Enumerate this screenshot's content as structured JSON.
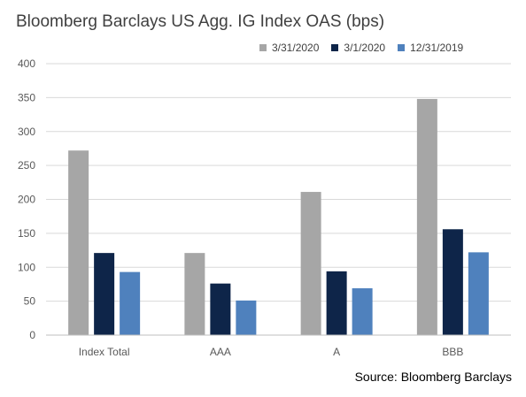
{
  "title": "Bloomberg Barclays US Agg. IG Index OAS (bps)",
  "source": "Source: Bloomberg Barclays",
  "chart_data": {
    "type": "bar",
    "title": "Bloomberg Barclays US Agg. IG Index OAS (bps)",
    "xlabel": "",
    "ylabel": "",
    "categories": [
      "Index Total",
      "AAA",
      "A",
      "BBB"
    ],
    "series": [
      {
        "name": "3/31/2020",
        "color": "#a6a6a6",
        "values": [
          272,
          121,
          211,
          348
        ]
      },
      {
        "name": "3/1/2020",
        "color": "#0e2549",
        "values": [
          121,
          76,
          94,
          156
        ]
      },
      {
        "name": "12/31/2019",
        "color": "#4f81bd",
        "values": [
          93,
          51,
          69,
          122
        ]
      }
    ],
    "ylim": [
      0,
      400
    ],
    "yticks": [
      "0",
      "50",
      "100",
      "150",
      "200",
      "250",
      "300",
      "350",
      "400"
    ],
    "grid": true,
    "legend_position": "top-right"
  }
}
